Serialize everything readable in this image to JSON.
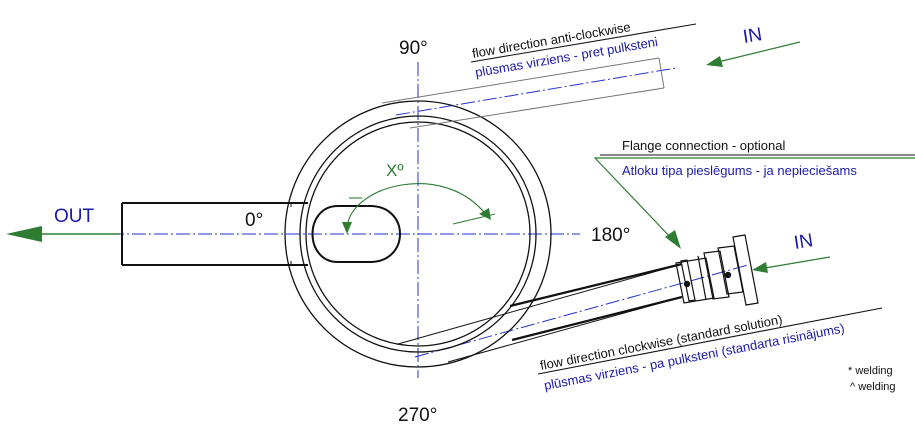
{
  "angles": {
    "top": "90°",
    "left": "0°",
    "right": "180°",
    "bottom": "270°",
    "sweep": "Xº"
  },
  "labels": {
    "out": "OUT",
    "in_top": "IN",
    "in_bottom": "IN",
    "flow_acw_en": "flow direction anti-clockwise",
    "flow_acw_lv": "plūsmas virziens - pret pulksteni",
    "flange_en": "Flange connection - optional",
    "flange_lv": "Atloku tipa pieslēgums - ja nepieciešams",
    "flow_cw_en": "flow direction clockwise (standard solution)",
    "flow_cw_lv": "plūsmas virziens - pa pulksteni (standarta risinājums)",
    "note_1": "* welding",
    "note_2": "^ welding"
  },
  "colors": {
    "line": "#111111",
    "centerline": "#2233cc",
    "arrow": "#2e7d32",
    "text_lv": "#1a1aa8"
  }
}
